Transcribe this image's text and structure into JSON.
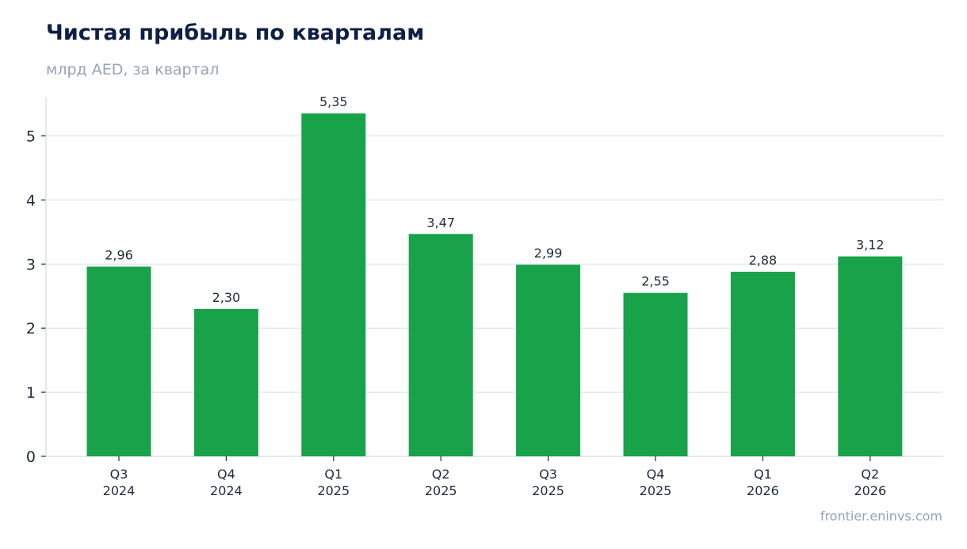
{
  "chart_data": {
    "type": "bar",
    "title": "Чистая прибыль по кварталам",
    "subtitle": "млрд AED, за квартал",
    "categories": [
      [
        "Q3",
        "2024"
      ],
      [
        "Q4",
        "2024"
      ],
      [
        "Q1",
        "2025"
      ],
      [
        "Q2",
        "2025"
      ],
      [
        "Q3",
        "2025"
      ],
      [
        "Q4",
        "2025"
      ],
      [
        "Q1",
        "2026"
      ],
      [
        "Q2",
        "2026"
      ]
    ],
    "values": [
      2.96,
      2.3,
      5.35,
      3.47,
      2.99,
      2.55,
      2.88,
      3.12
    ],
    "data_labels": [
      "2,96",
      "2,30",
      "5,35",
      "3,47",
      "2,99",
      "2,55",
      "2,88",
      "3,12"
    ],
    "y_ticks": [
      0,
      1,
      2,
      3,
      4,
      5
    ],
    "ylim": [
      0,
      5.6
    ],
    "grid": true,
    "bar_color": "#18a34a",
    "grid_color": "#e3e7ef",
    "axis_color": "#d4d9e2"
  },
  "footer": {
    "source": "frontier.eninvs.com"
  }
}
